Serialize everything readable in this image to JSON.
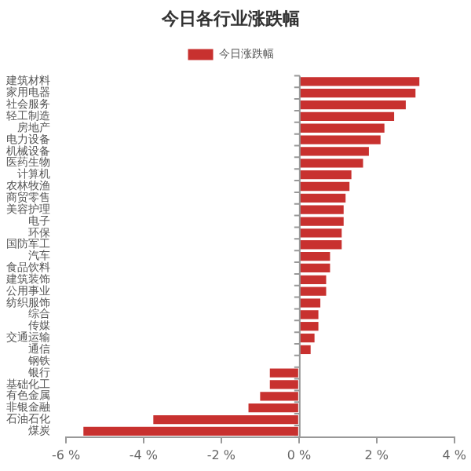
{
  "chart_data": {
    "type": "bar",
    "orientation": "horizontal",
    "title": "今日各行业涨跌幅",
    "legend": "top",
    "categories": [
      "建筑材料",
      "家用电器",
      "社会服务",
      "轻工制造",
      "房地产",
      "电力设备",
      "机械设备",
      "医药生物",
      "计算机",
      "农林牧渔",
      "商贸零售",
      "美容护理",
      "电子",
      "环保",
      "国防军工",
      "汽车",
      "食品饮料",
      "建筑装饰",
      "公用事业",
      "纺织服饰",
      "综合",
      "传媒",
      "交通运输",
      "通信",
      "钢铁",
      "银行",
      "基础化工",
      "有色金属",
      "非银金融",
      "石油石化",
      "煤炭"
    ],
    "series": [
      {
        "name": "今日涨跌幅",
        "color": "#c8312f",
        "values": [
          3.1,
          3.0,
          2.75,
          2.45,
          2.2,
          2.1,
          1.8,
          1.65,
          1.35,
          1.3,
          1.2,
          1.15,
          1.15,
          1.1,
          1.1,
          0.8,
          0.8,
          0.7,
          0.7,
          0.55,
          0.5,
          0.5,
          0.4,
          0.3,
          0,
          -0.75,
          -0.75,
          -1.0,
          -1.3,
          -3.75,
          -5.55
        ]
      }
    ],
    "xlim": [
      -6,
      4
    ],
    "xticks": [
      {
        "value": -6,
        "label": "-6 %"
      },
      {
        "value": -4,
        "label": "-4 %"
      },
      {
        "value": -2,
        "label": "-2 %"
      },
      {
        "value": 0,
        "label": "0 %"
      },
      {
        "value": 2,
        "label": "2 %"
      },
      {
        "value": 4,
        "label": "4 %"
      }
    ]
  }
}
